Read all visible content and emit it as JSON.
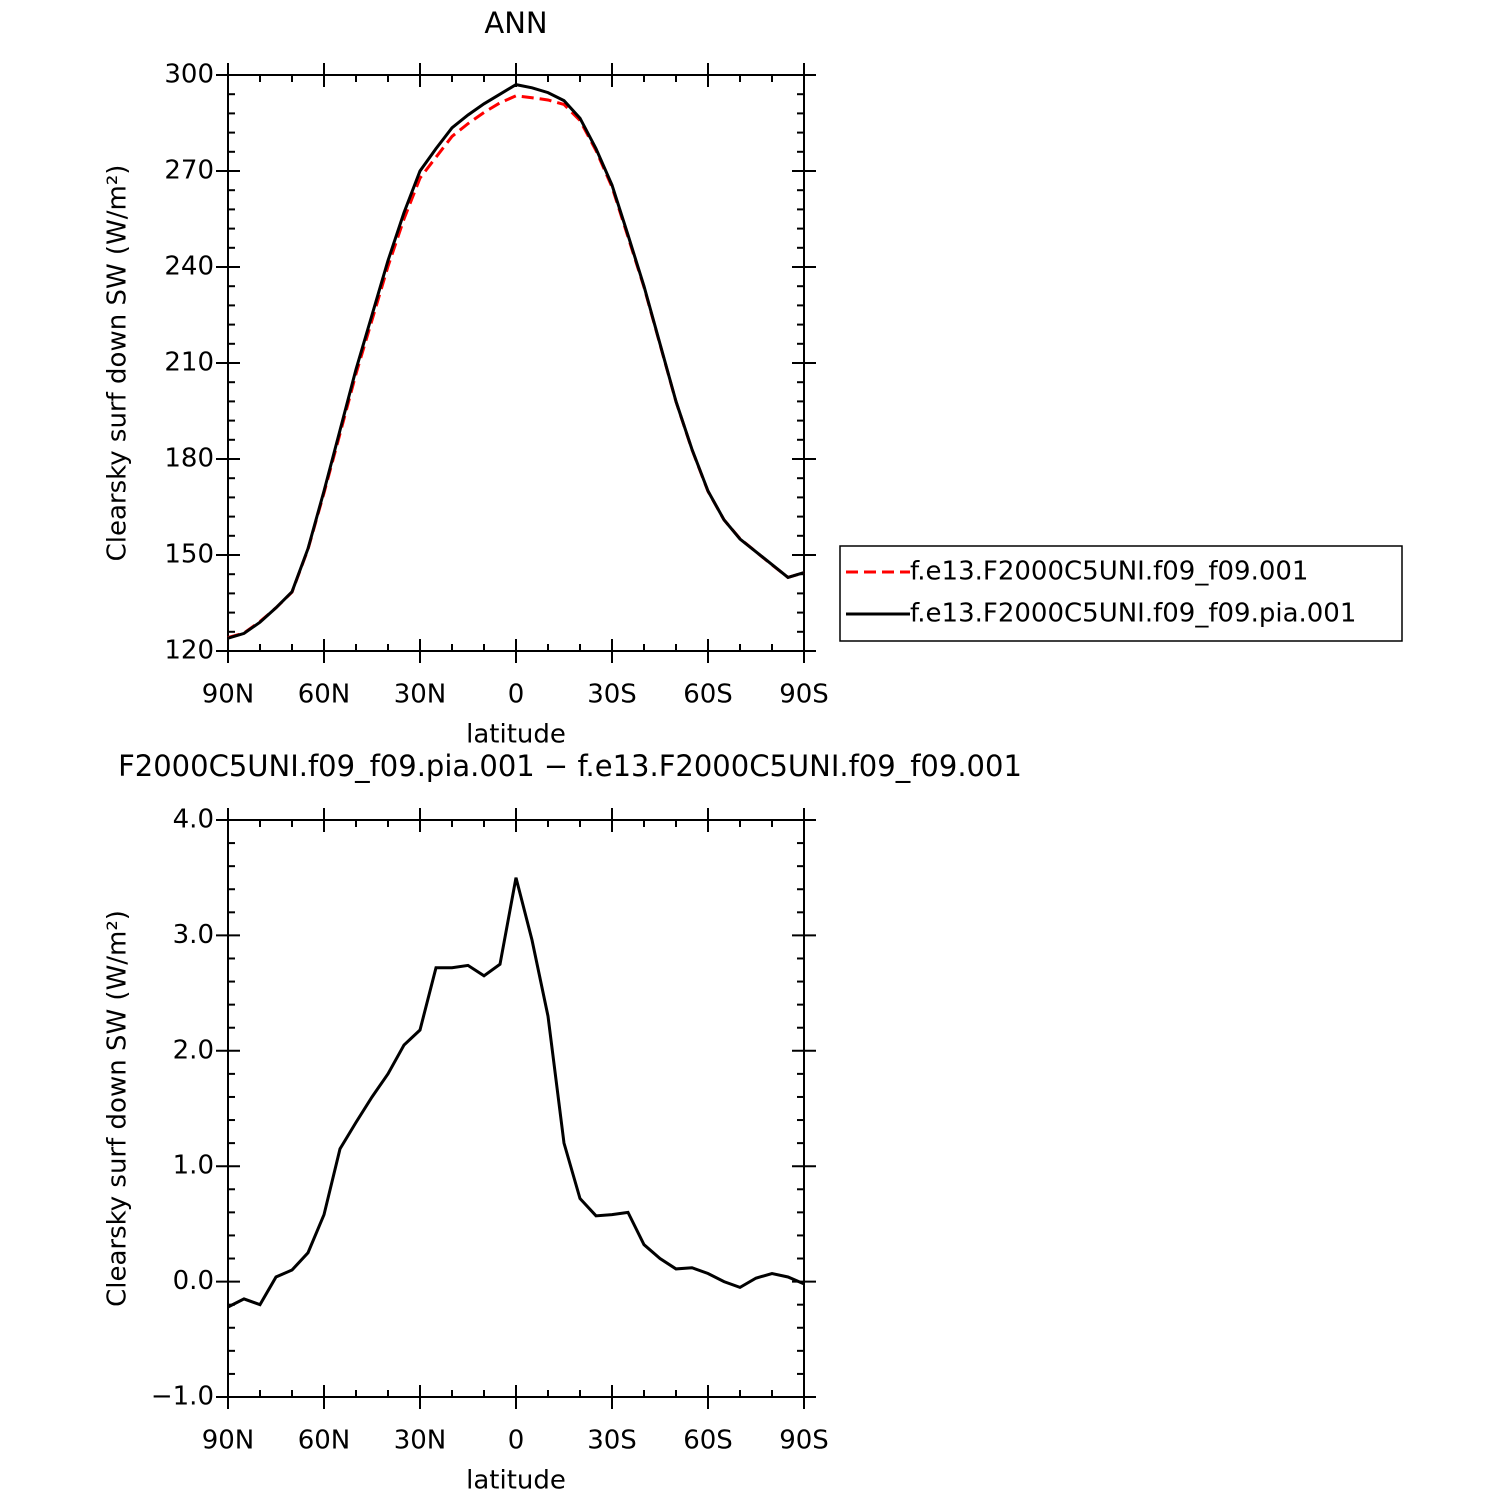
{
  "chart_data": [
    {
      "type": "line",
      "title": "ANN",
      "xlabel": "latitude",
      "ylabel": "Clearsky surf down SW (W/m²)",
      "x": [
        90,
        85,
        80,
        75,
        70,
        65,
        60,
        55,
        50,
        45,
        40,
        35,
        30,
        25,
        20,
        15,
        10,
        5,
        0,
        -5,
        -10,
        -15,
        -20,
        -25,
        -30,
        -35,
        -40,
        -45,
        -50,
        -55,
        -60,
        -65,
        -70,
        -75,
        -80,
        -85,
        -90
      ],
      "xlim": [
        90,
        -90
      ],
      "xticks": [
        {
          "value": 90,
          "label": "90N"
        },
        {
          "value": 60,
          "label": "60N"
        },
        {
          "value": 30,
          "label": "30N"
        },
        0,
        {
          "value": -30,
          "label": "30S"
        },
        {
          "value": -60,
          "label": "60S"
        },
        {
          "value": -90,
          "label": "90S"
        }
      ],
      "ylim": [
        120,
        300
      ],
      "yticks": [
        120,
        150,
        180,
        210,
        240,
        270,
        300
      ],
      "legend": "right",
      "series": [
        {
          "name": "f.e13.F2000C5UNI.f09_f09.001",
          "color": "#ff0000",
          "dashed": true,
          "values": [
            124.2,
            125.6,
            129.2,
            133.5,
            138.4,
            151.8,
            169.4,
            187.9,
            206.6,
            223.4,
            240.2,
            255,
            267.8,
            274.3,
            280.8,
            284.8,
            288.3,
            291.3,
            293.5,
            292.9,
            292.2,
            290.8,
            285.8,
            276.4,
            265,
            249.4,
            233.7,
            215.8,
            197.9,
            182.9,
            169.9,
            161,
            155.1,
            151,
            146.9,
            143,
            144.5
          ]
        },
        {
          "name": "f.e13.F2000C5UNI.f09_f09.pia.001",
          "color": "#000000",
          "dashed": false,
          "values": [
            124,
            125.5,
            129,
            133.5,
            138.5,
            152,
            170,
            189,
            208,
            225,
            242,
            257,
            270,
            277,
            283.5,
            287.5,
            291,
            294,
            297,
            296,
            294.5,
            292,
            286.5,
            277,
            265.6,
            250,
            234,
            216,
            198,
            183,
            170,
            161,
            155,
            151,
            147,
            143,
            144.5
          ]
        }
      ]
    },
    {
      "type": "line",
      "title": "F2000C5UNI.f09_f09.pia.001 − f.e13.F2000C5UNI.f09_f09.001",
      "xlabel": "latitude",
      "ylabel": "Clearsky surf down SW (W/m²)",
      "x": [
        90,
        85,
        80,
        75,
        70,
        65,
        60,
        55,
        50,
        45,
        40,
        35,
        30,
        25,
        20,
        15,
        10,
        5,
        0,
        -5,
        -10,
        -15,
        -20,
        -25,
        -30,
        -35,
        -40,
        -45,
        -50,
        -55,
        -60,
        -65,
        -70,
        -75,
        -80,
        -85,
        -90
      ],
      "xlim": [
        90,
        -90
      ],
      "xticks": [
        {
          "value": 90,
          "label": "90N"
        },
        {
          "value": 60,
          "label": "60N"
        },
        {
          "value": 30,
          "label": "30N"
        },
        0,
        {
          "value": -30,
          "label": "30S"
        },
        {
          "value": -60,
          "label": "60S"
        },
        {
          "value": -90,
          "label": "90S"
        }
      ],
      "ylim": [
        -1,
        4
      ],
      "yticks": [
        {
          "value": -1,
          "label": "−1.0"
        },
        {
          "value": 0,
          "label": "0.0"
        },
        {
          "value": 1,
          "label": "1.0"
        },
        {
          "value": 2,
          "label": "2.0"
        },
        {
          "value": 3,
          "label": "3.0"
        },
        {
          "value": 4,
          "label": "4.0"
        }
      ],
      "color": "#000000",
      "values": [
        -0.22,
        -0.15,
        -0.2,
        0.04,
        0.1,
        0.25,
        0.58,
        1.15,
        1.38,
        1.6,
        1.8,
        2.05,
        2.18,
        2.72,
        2.72,
        2.74,
        2.65,
        2.75,
        3.5,
        2.96,
        2.3,
        1.2,
        0.72,
        0.57,
        0.58,
        0.6,
        0.32,
        0.2,
        0.11,
        0.12,
        0.07,
        0.0,
        -0.05,
        0.03,
        0.07,
        0.04,
        -0.02
      ]
    }
  ]
}
